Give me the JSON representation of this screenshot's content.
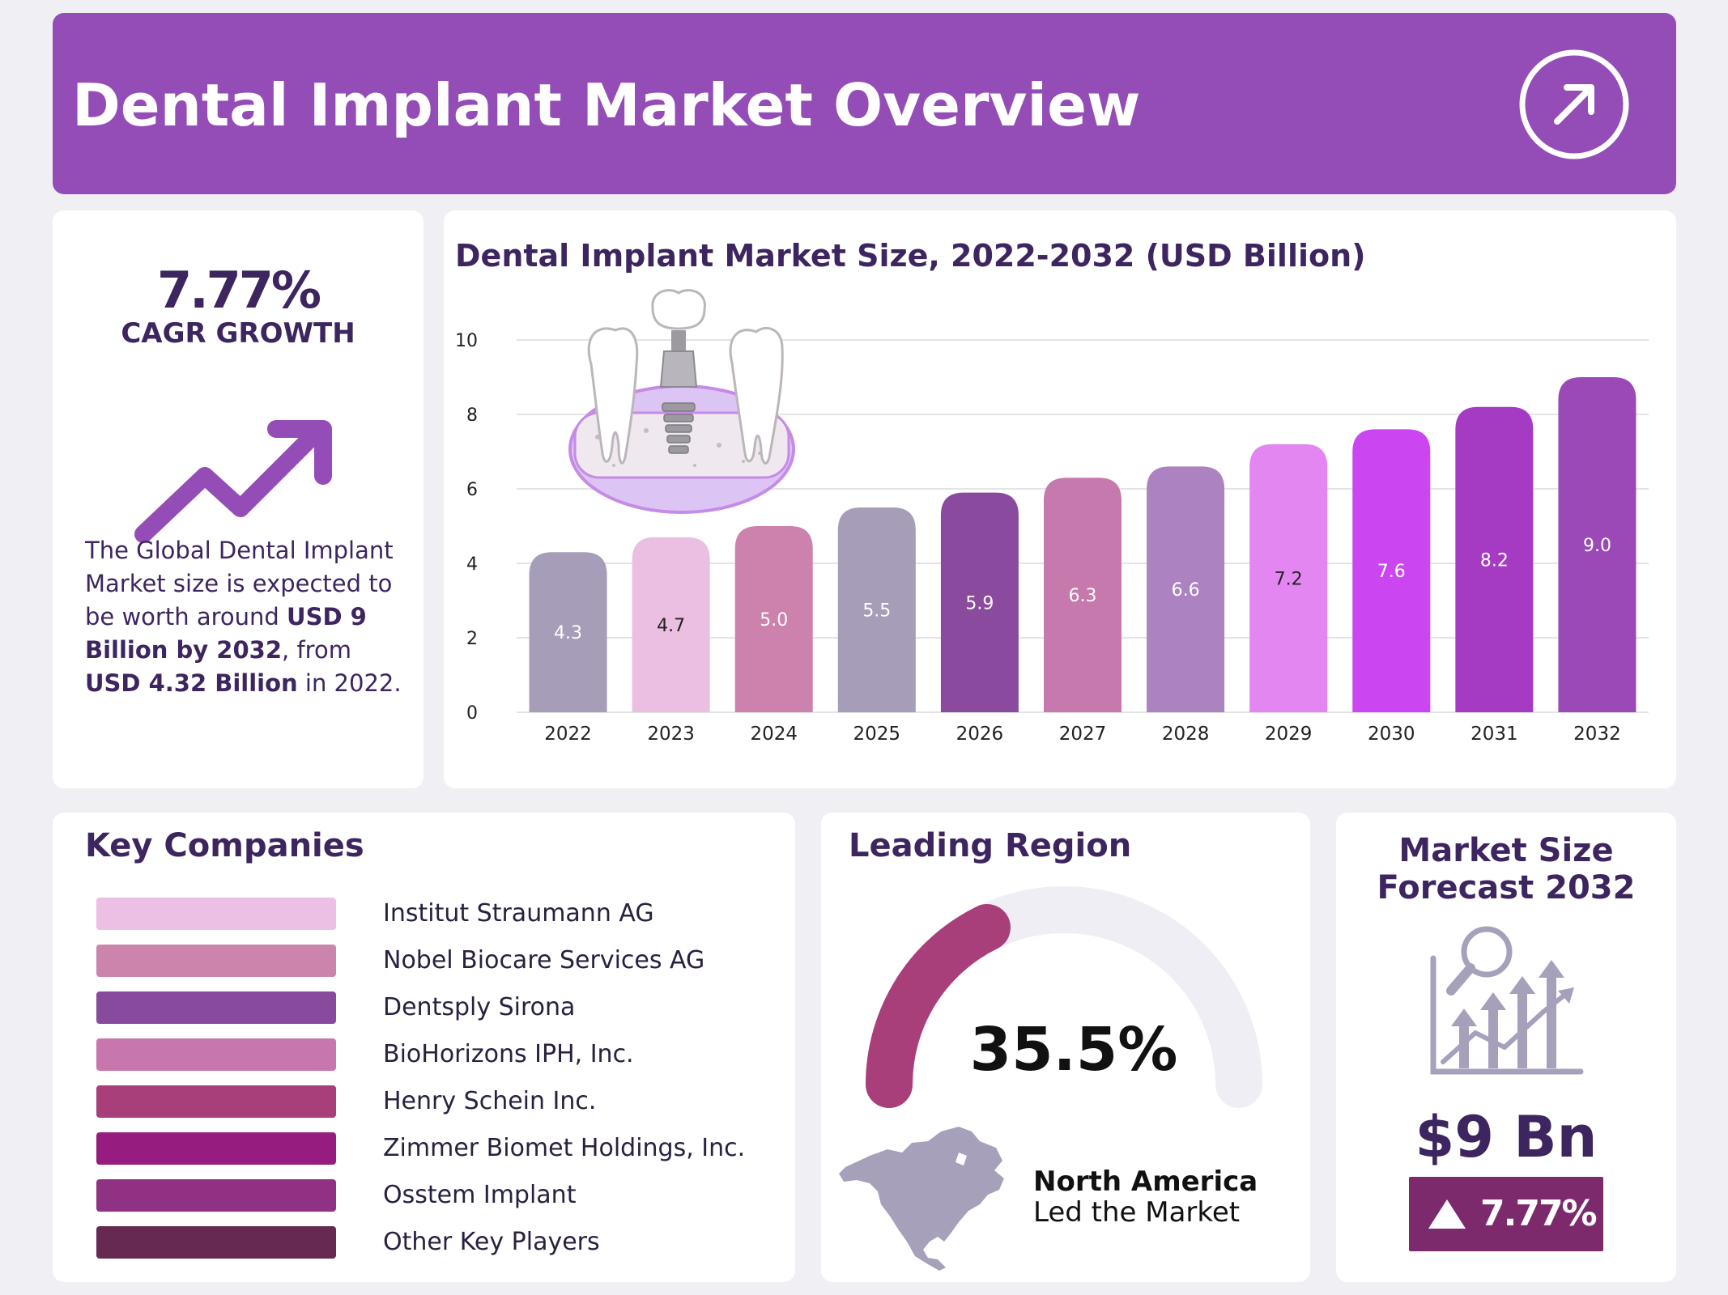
{
  "header": {
    "title": "Dental Implant Market Overview",
    "arrow_icon": "arrow-up-right-icon"
  },
  "cagr": {
    "value": "7.77%",
    "label": "CAGR GROWTH",
    "description_parts": [
      "The Global Dental Implant Market size is expected to be worth around ",
      "USD  9 Billion by 2032",
      ", from ",
      "USD 4.32 Billion",
      " in 2022."
    ],
    "trend_icon": "trend-up-arrow-icon"
  },
  "chart_data": {
    "type": "bar",
    "title": "Dental Implant Market Size, 2022-2032 (USD Billion)",
    "categories": [
      "2022",
      "2023",
      "2024",
      "2025",
      "2026",
      "2027",
      "2028",
      "2029",
      "2030",
      "2031",
      "2032"
    ],
    "values": [
      4.3,
      4.7,
      5.0,
      5.5,
      5.9,
      6.3,
      6.6,
      7.2,
      7.6,
      8.2,
      9.0
    ],
    "value_labels": [
      "4.3",
      "4.7",
      "5.0",
      "5.5",
      "5.9",
      "6.3",
      "6.6",
      "7.2",
      "7.6",
      "8.2",
      "9.0"
    ],
    "bar_colors": [
      "#a69db8",
      "#eabfe2",
      "#cc82ad",
      "#a69db8",
      "#8a4a9e",
      "#c679ad",
      "#ad82c0",
      "#e486f2",
      "#cb46f0",
      "#a63bc3",
      "#9a49b7"
    ],
    "label_colors": [
      "#ffffff",
      "#222222",
      "#ffffff",
      "#ffffff",
      "#ffffff",
      "#ffffff",
      "#ffffff",
      "#222222",
      "#ffffff",
      "#ffffff",
      "#ffffff"
    ],
    "yticks": [
      "0",
      "2",
      "4",
      "6",
      "8",
      "10"
    ],
    "ylim": [
      0,
      10
    ],
    "xlabel": "",
    "ylabel": "",
    "grid": true,
    "illustration": "dental-implant-image"
  },
  "companies": {
    "title": "Key Companies",
    "items": [
      {
        "name": "Institut Straumann AG",
        "color": "#ecbfe4"
      },
      {
        "name": "Nobel Biocare Services AG",
        "color": "#cb85ad"
      },
      {
        "name": "Dentsply Sirona",
        "color": "#884a9c"
      },
      {
        "name": "BioHorizons IPH, Inc.",
        "color": "#c777ad"
      },
      {
        "name": "Henry Schein Inc.",
        "color": "#a83e7a"
      },
      {
        "name": "Zimmer Biomet Holdings, Inc.",
        "color": "#971c7f"
      },
      {
        "name": "Osstem Implant",
        "color": "#903283"
      },
      {
        "name": "Other Key Players",
        "color": "#662a52"
      }
    ]
  },
  "region": {
    "title": "Leading Region",
    "percent": "35.5%",
    "share": 0.355,
    "name": "North America",
    "subtitle": "Led the Market",
    "gauge_color": "#a83e7a",
    "gauge_track_color": "#efeef4",
    "map_icon": "north-america-map-icon"
  },
  "forecast": {
    "title_line1": "Market Size",
    "title_line2": "Forecast 2032",
    "value": "$9 Bn",
    "growth": "7.77%",
    "icon": "analytics-chart-icon",
    "badge_icon": "triangle-up-icon"
  },
  "colors": {
    "header_bg": "#944db6",
    "text_primary": "#3d2560",
    "page_bg": "#f0eff4"
  }
}
